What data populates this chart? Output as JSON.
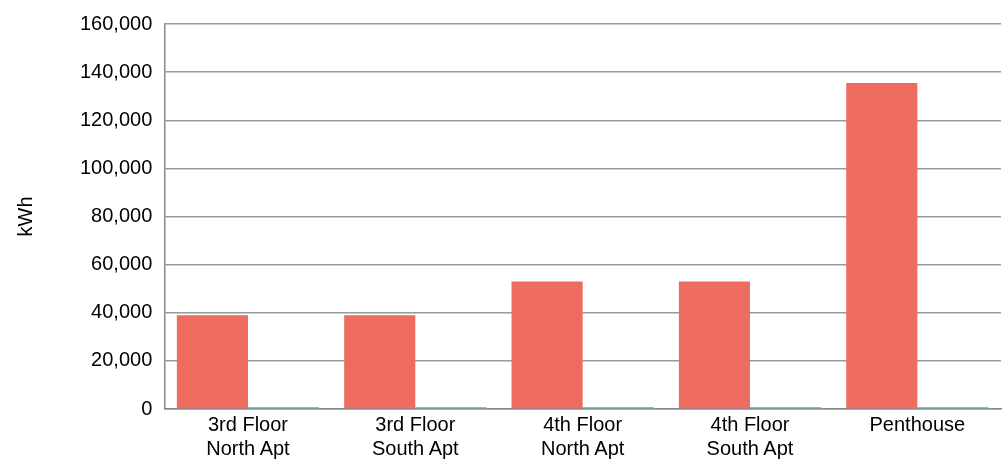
{
  "chart_data": {
    "type": "bar",
    "ylabel": "kWh",
    "categories": [
      "3rd Floor\nNorth Apt",
      "3rd Floor\nSouth Apt",
      "4th Floor\nNorth Apt",
      "4th Floor\nSouth Apt",
      "Penthouse"
    ],
    "series": [
      {
        "color": "#ee6b5f",
        "values": [
          39000,
          39000,
          53000,
          53000,
          135500
        ]
      },
      {
        "color": "#4fd6d6",
        "values": [
          800,
          800,
          800,
          800,
          800
        ]
      }
    ],
    "ylim": [
      0,
      160000
    ],
    "yticks": [
      0,
      {
        "value": 20000,
        "label": "20,000"
      },
      {
        "value": 40000,
        "label": "40,000"
      },
      {
        "value": 60000,
        "label": "60,000"
      },
      {
        "value": 80000,
        "label": "80,000"
      },
      {
        "value": 100000,
        "label": "100,000"
      },
      {
        "value": 120000,
        "label": "120,000"
      },
      {
        "value": 140000,
        "label": "140,000"
      },
      {
        "value": 160000,
        "label": "160,000"
      }
    ],
    "grid": "y",
    "legend": false
  }
}
